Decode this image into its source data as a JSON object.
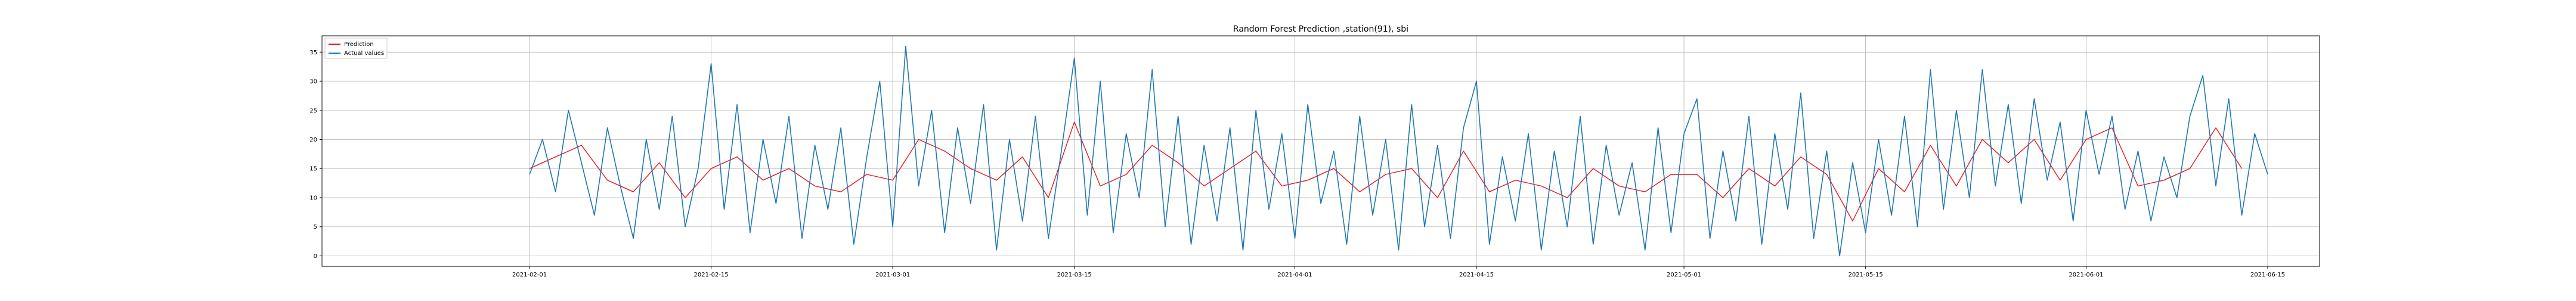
{
  "chart_data": {
    "type": "line",
    "title": "Random Forest Prediction ,station(91), sbi",
    "xlabel": "",
    "ylabel": "",
    "grid": true,
    "legend_placement": "top-left",
    "xlim": [
      "2021-01-16",
      "2021-06-19"
    ],
    "ylim": [
      -1.8,
      37.8
    ],
    "y_ticks": [
      0,
      5,
      10,
      15,
      20,
      25,
      30,
      35
    ],
    "x_ticks": [
      "2021-02-01",
      "2021-02-15",
      "2021-03-01",
      "2021-03-15",
      "2021-04-01",
      "2021-04-15",
      "2021-05-01",
      "2021-05-15",
      "2021-06-01",
      "2021-06-15"
    ],
    "colors": {
      "prediction": "#e41a1c",
      "actual": "#1f77b4"
    },
    "series": [
      {
        "name": "Prediction",
        "color": "#e41a1c",
        "points": [
          [
            "2021-02-01",
            15
          ],
          [
            "2021-02-03",
            17
          ],
          [
            "2021-02-05",
            19
          ],
          [
            "2021-02-07",
            13
          ],
          [
            "2021-02-09",
            11
          ],
          [
            "2021-02-11",
            16
          ],
          [
            "2021-02-13",
            10
          ],
          [
            "2021-02-15",
            15
          ],
          [
            "2021-02-17",
            17
          ],
          [
            "2021-02-19",
            13
          ],
          [
            "2021-02-21",
            15
          ],
          [
            "2021-02-23",
            12
          ],
          [
            "2021-02-25",
            11
          ],
          [
            "2021-02-27",
            14
          ],
          [
            "2021-03-01",
            13
          ],
          [
            "2021-03-03",
            20
          ],
          [
            "2021-03-05",
            18
          ],
          [
            "2021-03-07",
            15
          ],
          [
            "2021-03-09",
            13
          ],
          [
            "2021-03-11",
            17
          ],
          [
            "2021-03-13",
            10
          ],
          [
            "2021-03-15",
            23
          ],
          [
            "2021-03-17",
            12
          ],
          [
            "2021-03-19",
            14
          ],
          [
            "2021-03-21",
            19
          ],
          [
            "2021-03-23",
            16
          ],
          [
            "2021-03-25",
            12
          ],
          [
            "2021-03-27",
            15
          ],
          [
            "2021-03-29",
            18
          ],
          [
            "2021-03-31",
            12
          ],
          [
            "2021-04-02",
            13
          ],
          [
            "2021-04-04",
            15
          ],
          [
            "2021-04-06",
            11
          ],
          [
            "2021-04-08",
            14
          ],
          [
            "2021-04-10",
            15
          ],
          [
            "2021-04-12",
            10
          ],
          [
            "2021-04-14",
            18
          ],
          [
            "2021-04-16",
            11
          ],
          [
            "2021-04-18",
            13
          ],
          [
            "2021-04-20",
            12
          ],
          [
            "2021-04-22",
            10
          ],
          [
            "2021-04-24",
            15
          ],
          [
            "2021-04-26",
            12
          ],
          [
            "2021-04-28",
            11
          ],
          [
            "2021-04-30",
            14
          ],
          [
            "2021-05-02",
            14
          ],
          [
            "2021-05-04",
            10
          ],
          [
            "2021-05-06",
            15
          ],
          [
            "2021-05-08",
            12
          ],
          [
            "2021-05-10",
            17
          ],
          [
            "2021-05-12",
            14
          ],
          [
            "2021-05-14",
            6
          ],
          [
            "2021-05-16",
            15
          ],
          [
            "2021-05-18",
            11
          ],
          [
            "2021-05-20",
            19
          ],
          [
            "2021-05-22",
            12
          ],
          [
            "2021-05-24",
            20
          ],
          [
            "2021-05-26",
            16
          ],
          [
            "2021-05-28",
            20
          ],
          [
            "2021-05-30",
            13
          ],
          [
            "2021-06-01",
            20
          ],
          [
            "2021-06-03",
            22
          ],
          [
            "2021-06-05",
            12
          ],
          [
            "2021-06-07",
            13
          ],
          [
            "2021-06-09",
            15
          ],
          [
            "2021-06-11",
            22
          ],
          [
            "2021-06-13",
            15
          ]
        ]
      },
      {
        "name": "Actual values",
        "color": "#1f77b4",
        "points": [
          [
            "2021-02-01",
            14
          ],
          [
            "2021-02-02",
            20
          ],
          [
            "2021-02-03",
            11
          ],
          [
            "2021-02-04",
            25
          ],
          [
            "2021-02-05",
            16
          ],
          [
            "2021-02-06",
            7
          ],
          [
            "2021-02-07",
            22
          ],
          [
            "2021-02-08",
            12
          ],
          [
            "2021-02-09",
            3
          ],
          [
            "2021-02-10",
            20
          ],
          [
            "2021-02-11",
            8
          ],
          [
            "2021-02-12",
            24
          ],
          [
            "2021-02-13",
            5
          ],
          [
            "2021-02-14",
            15
          ],
          [
            "2021-02-15",
            33
          ],
          [
            "2021-02-16",
            8
          ],
          [
            "2021-02-17",
            26
          ],
          [
            "2021-02-18",
            4
          ],
          [
            "2021-02-19",
            20
          ],
          [
            "2021-02-20",
            9
          ],
          [
            "2021-02-21",
            24
          ],
          [
            "2021-02-22",
            3
          ],
          [
            "2021-02-23",
            19
          ],
          [
            "2021-02-24",
            8
          ],
          [
            "2021-02-25",
            22
          ],
          [
            "2021-02-26",
            2
          ],
          [
            "2021-02-27",
            17
          ],
          [
            "2021-02-28",
            30
          ],
          [
            "2021-03-01",
            5
          ],
          [
            "2021-03-02",
            36
          ],
          [
            "2021-03-03",
            12
          ],
          [
            "2021-03-04",
            25
          ],
          [
            "2021-03-05",
            4
          ],
          [
            "2021-03-06",
            22
          ],
          [
            "2021-03-07",
            9
          ],
          [
            "2021-03-08",
            26
          ],
          [
            "2021-03-09",
            1
          ],
          [
            "2021-03-10",
            20
          ],
          [
            "2021-03-11",
            6
          ],
          [
            "2021-03-12",
            24
          ],
          [
            "2021-03-13",
            3
          ],
          [
            "2021-03-14",
            18
          ],
          [
            "2021-03-15",
            34
          ],
          [
            "2021-03-16",
            7
          ],
          [
            "2021-03-17",
            30
          ],
          [
            "2021-03-18",
            4
          ],
          [
            "2021-03-19",
            21
          ],
          [
            "2021-03-20",
            10
          ],
          [
            "2021-03-21",
            32
          ],
          [
            "2021-03-22",
            5
          ],
          [
            "2021-03-23",
            24
          ],
          [
            "2021-03-24",
            2
          ],
          [
            "2021-03-25",
            19
          ],
          [
            "2021-03-26",
            6
          ],
          [
            "2021-03-27",
            22
          ],
          [
            "2021-03-28",
            1
          ],
          [
            "2021-03-29",
            25
          ],
          [
            "2021-03-30",
            8
          ],
          [
            "2021-03-31",
            21
          ],
          [
            "2021-04-01",
            3
          ],
          [
            "2021-04-02",
            26
          ],
          [
            "2021-04-03",
            9
          ],
          [
            "2021-04-04",
            18
          ],
          [
            "2021-04-05",
            2
          ],
          [
            "2021-04-06",
            24
          ],
          [
            "2021-04-07",
            7
          ],
          [
            "2021-04-08",
            20
          ],
          [
            "2021-04-09",
            1
          ],
          [
            "2021-04-10",
            26
          ],
          [
            "2021-04-11",
            5
          ],
          [
            "2021-04-12",
            19
          ],
          [
            "2021-04-13",
            3
          ],
          [
            "2021-04-14",
            22
          ],
          [
            "2021-04-15",
            30
          ],
          [
            "2021-04-16",
            2
          ],
          [
            "2021-04-17",
            17
          ],
          [
            "2021-04-18",
            6
          ],
          [
            "2021-04-19",
            21
          ],
          [
            "2021-04-20",
            1
          ],
          [
            "2021-04-21",
            18
          ],
          [
            "2021-04-22",
            5
          ],
          [
            "2021-04-23",
            24
          ],
          [
            "2021-04-24",
            2
          ],
          [
            "2021-04-25",
            19
          ],
          [
            "2021-04-26",
            7
          ],
          [
            "2021-04-27",
            16
          ],
          [
            "2021-04-28",
            1
          ],
          [
            "2021-04-29",
            22
          ],
          [
            "2021-04-30",
            4
          ],
          [
            "2021-05-01",
            21
          ],
          [
            "2021-05-02",
            27
          ],
          [
            "2021-05-03",
            3
          ],
          [
            "2021-05-04",
            18
          ],
          [
            "2021-05-05",
            6
          ],
          [
            "2021-05-06",
            24
          ],
          [
            "2021-05-07",
            2
          ],
          [
            "2021-05-08",
            21
          ],
          [
            "2021-05-09",
            8
          ],
          [
            "2021-05-10",
            28
          ],
          [
            "2021-05-11",
            3
          ],
          [
            "2021-05-12",
            18
          ],
          [
            "2021-05-13",
            0
          ],
          [
            "2021-05-14",
            16
          ],
          [
            "2021-05-15",
            4
          ],
          [
            "2021-05-16",
            20
          ],
          [
            "2021-05-17",
            7
          ],
          [
            "2021-05-18",
            24
          ],
          [
            "2021-05-19",
            5
          ],
          [
            "2021-05-20",
            32
          ],
          [
            "2021-05-21",
            8
          ],
          [
            "2021-05-22",
            25
          ],
          [
            "2021-05-23",
            10
          ],
          [
            "2021-05-24",
            32
          ],
          [
            "2021-05-25",
            12
          ],
          [
            "2021-05-26",
            26
          ],
          [
            "2021-05-27",
            9
          ],
          [
            "2021-05-28",
            27
          ],
          [
            "2021-05-29",
            13
          ],
          [
            "2021-05-30",
            23
          ],
          [
            "2021-05-31",
            6
          ],
          [
            "2021-06-01",
            25
          ],
          [
            "2021-06-02",
            14
          ],
          [
            "2021-06-03",
            24
          ],
          [
            "2021-06-04",
            8
          ],
          [
            "2021-06-05",
            18
          ],
          [
            "2021-06-06",
            6
          ],
          [
            "2021-06-07",
            17
          ],
          [
            "2021-06-08",
            10
          ],
          [
            "2021-06-09",
            24
          ],
          [
            "2021-06-10",
            31
          ],
          [
            "2021-06-11",
            12
          ],
          [
            "2021-06-12",
            27
          ],
          [
            "2021-06-13",
            7
          ],
          [
            "2021-06-14",
            21
          ],
          [
            "2021-06-15",
            14
          ]
        ]
      }
    ]
  }
}
